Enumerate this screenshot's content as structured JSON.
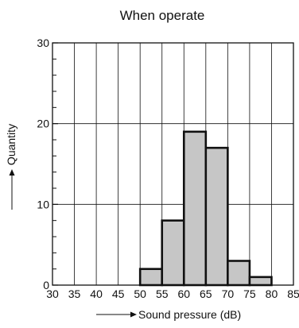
{
  "chart_data": {
    "type": "bar",
    "title": "When operate",
    "xlabel": "Sound pressure (dB)",
    "ylabel": "Quantity",
    "xlim": [
      30,
      85
    ],
    "ylim": [
      0,
      30
    ],
    "x_ticks": [
      30,
      35,
      40,
      45,
      50,
      55,
      60,
      65,
      70,
      75,
      80,
      85
    ],
    "y_ticks": [
      0,
      10,
      20,
      30
    ],
    "bin_width": 5,
    "bins": [
      {
        "start": 50,
        "end": 55,
        "value": 2
      },
      {
        "start": 55,
        "end": 60,
        "value": 8
      },
      {
        "start": 60,
        "end": 65,
        "value": 19
      },
      {
        "start": 65,
        "end": 70,
        "value": 17
      },
      {
        "start": 70,
        "end": 75,
        "value": 3
      },
      {
        "start": 75,
        "end": 80,
        "value": 1
      }
    ],
    "grid": true,
    "legend": "none",
    "bar_color": "#c6c6c6",
    "bar_edge_color": "#111111",
    "grid_color": "#111111"
  }
}
